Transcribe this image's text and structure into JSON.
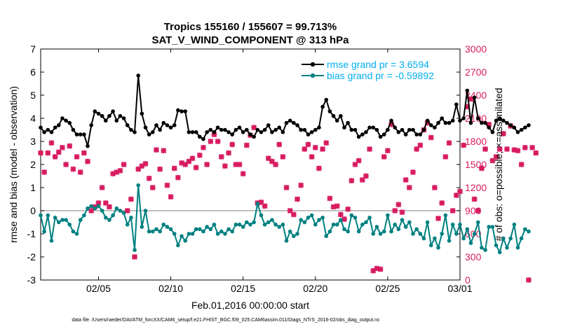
{
  "chart_data": {
    "type": "line",
    "title": "Tropics 155160 / 155607 = 99.713%",
    "subtitle": "SAT_V_WIND_COMPONENT @ 313 hPa",
    "xlabel": "Feb.01,2016 00:00:00 start",
    "ylabel": "rmse and bias (model - observation)",
    "ylabel_right": "# of obs: o=possible; ×=assimilated",
    "footnote": "data file: /Users/raeder/DAI/ATM_forcXX/CAM6_setup/f.e21.FHIST_BGC.f09_025.CAM6assim.011/Diags_NTrS_2016-02/obs_diag_output.nc",
    "xlim": [
      1.0,
      30.0
    ],
    "ylim": [
      -3,
      7
    ],
    "ylim_right": [
      0,
      3000
    ],
    "x_ticks": [
      5,
      10,
      15,
      20,
      25,
      30
    ],
    "x_tick_labels": [
      "02/05",
      "02/10",
      "02/15",
      "02/20",
      "02/25",
      "03/01"
    ],
    "y_ticks": [
      -3,
      -2,
      -1,
      0,
      1,
      2,
      3,
      4,
      5,
      6,
      7
    ],
    "y_tick_labels": [
      "-3",
      "-2",
      "-1",
      "0",
      "1",
      "2",
      "3",
      "4",
      "5",
      "6",
      "7"
    ],
    "y_ticks_right": [
      0,
      300,
      600,
      900,
      1200,
      1500,
      1800,
      2100,
      2400,
      2700,
      3000
    ],
    "y_tick_labels_right": [
      "0",
      "300",
      "600",
      "900",
      "1200",
      "1500",
      "1800",
      "2100",
      "2400",
      "2700",
      "3000"
    ],
    "x_step": 0.25,
    "x_start": 1.0,
    "zero_line": 0,
    "legend": {
      "position": "top-right",
      "entries": [
        "rmse grand pr = 3.6594",
        "bias grand pr = -0.59892"
      ]
    },
    "colors": {
      "rmse": "#000000",
      "bias": "#008080",
      "obs": "#d81b60",
      "legend_text": "#00aeef",
      "zero_line": "#aaaaaa",
      "right_axis": "#d81b60"
    },
    "series": [
      {
        "name": "rmse grand pr = 3.6594",
        "values": [
          3.6,
          3.4,
          3.5,
          3.4,
          3.6,
          3.7,
          4.0,
          3.9,
          3.8,
          3.5,
          3.3,
          3.3,
          3.3,
          2.8,
          3.7,
          4.3,
          4.2,
          4.1,
          3.9,
          4.1,
          4.3,
          3.9,
          4.1,
          4.0,
          3.7,
          3.5,
          3.4,
          5.85,
          4.2,
          3.6,
          3.3,
          3.4,
          3.7,
          3.5,
          3.8,
          3.7,
          3.6,
          3.7,
          4.35,
          4.3,
          4.3,
          3.4,
          3.4,
          3.4,
          3.2,
          3.1,
          3.4,
          3.5,
          3.4,
          3.6,
          3.5,
          3.5,
          3.4,
          3.3,
          3.5,
          3.6,
          3.4,
          3.5,
          3.3,
          3.2,
          3.5,
          3.4,
          3.5,
          3.7,
          3.4,
          3.5,
          3.6,
          3.4,
          3.8,
          3.9,
          3.8,
          3.7,
          3.5,
          3.5,
          3.3,
          3.4,
          3.5,
          3.6,
          4.5,
          4.8,
          4.3,
          4.1,
          3.9,
          4.1,
          3.6,
          3.8,
          3.5,
          3.5,
          3.2,
          3.3,
          3.4,
          3.6,
          3.6,
          3.5,
          3.2,
          3.3,
          3.5,
          3.9,
          3.6,
          3.4,
          3.5,
          3.3,
          3.5,
          3.5,
          3.3,
          3.3,
          3.5,
          3.9,
          3.7,
          3.6,
          3.8,
          4.0,
          3.8,
          3.8,
          3.9,
          4.6,
          3.9,
          4.0,
          5.2,
          3.8,
          4.9,
          4.0,
          3.8,
          3.8,
          3.6,
          3.4,
          3.9,
          4.0,
          3.9,
          3.8,
          3.7,
          3.6,
          3.4,
          3.5,
          3.6,
          3.7
        ]
      },
      {
        "name": "bias grand pr = -0.59892",
        "values": [
          -0.2,
          -0.9,
          -0.2,
          -1.3,
          -0.3,
          -0.5,
          -0.4,
          -0.4,
          -0.6,
          -0.9,
          -1.0,
          -0.4,
          -0.2,
          0.1,
          0.2,
          0.1,
          0.2,
          0.0,
          -0.3,
          -0.4,
          -0.2,
          0.1,
          0.0,
          -0.1,
          -0.6,
          -0.3,
          -1.7,
          1.1,
          -0.7,
          0.0,
          -0.9,
          -0.9,
          -0.8,
          -0.9,
          -0.6,
          -0.7,
          -0.8,
          -1.0,
          -1.5,
          -1.1,
          -1.3,
          -1.0,
          -1.0,
          -0.8,
          -0.8,
          -0.9,
          -0.7,
          -0.8,
          -0.6,
          -1.0,
          -0.9,
          -1.0,
          -0.8,
          -0.9,
          -0.6,
          -0.6,
          -0.7,
          -0.5,
          -0.6,
          -0.5,
          0.3,
          -0.2,
          -0.6,
          -0.5,
          -0.4,
          -0.6,
          -0.7,
          -0.6,
          -1.3,
          -0.9,
          -1.1,
          -1.0,
          -0.4,
          -0.5,
          -0.3,
          -0.2,
          -0.6,
          -0.4,
          -0.3,
          -1.1,
          -0.9,
          -0.6,
          -0.6,
          -0.4,
          -0.8,
          -0.9,
          -0.2,
          -0.3,
          -0.9,
          -0.6,
          -0.5,
          -0.3,
          -1.0,
          -0.7,
          -1.0,
          -0.9,
          -0.2,
          -0.9,
          -0.6,
          -0.8,
          -0.4,
          -0.7,
          -0.5,
          -1.0,
          -0.8,
          -1.0,
          -1.2,
          -0.5,
          -1.5,
          -1.2,
          -1.6,
          -1.0,
          -0.2,
          -1.3,
          -0.6,
          -1.0,
          -0.6,
          -1.2,
          -0.8,
          -1.4,
          -1.0,
          -0.5,
          -1.6,
          -1.7,
          -0.7,
          -0.7,
          -1.5,
          -1.8,
          -1.2,
          -1.6,
          -1.2,
          -0.6,
          -1.6,
          -1.2,
          -0.8,
          -0.9
        ]
      }
    ],
    "obs_series": {
      "name": "# of obs assimilated",
      "values": [
        1650,
        1400,
        1650,
        1780,
        1600,
        1660,
        1720,
        1500,
        1740,
        1440,
        1600,
        1400,
        1650,
        1540,
        900,
        950,
        1000,
        1200,
        1000,
        950,
        1380,
        1400,
        1420,
        1500,
        900,
        1050,
        300,
        1440,
        1480,
        1510,
        1320,
        1200,
        1690,
        1440,
        1680,
        1230,
        1080,
        1450,
        1330,
        1520,
        1500,
        1540,
        1580,
        1460,
        1620,
        1720,
        1500,
        1800,
        1890,
        1800,
        1600,
        1480,
        1650,
        1760,
        1500,
        1500,
        1380,
        1750,
        1880,
        1980,
        1000,
        1010,
        960,
        1580,
        1540,
        1500,
        1760,
        1600,
        1200,
        900,
        850,
        1050,
        1230,
        1700,
        1760,
        1600,
        1720,
        1450,
        1700,
        1780,
        1060,
        950,
        960,
        850,
        790,
        920,
        1290,
        1500,
        1550,
        1300,
        1350,
        1700,
        120,
        150,
        140,
        1600,
        1680,
        2020,
        900,
        980,
        880,
        1300,
        1200,
        1400,
        1700,
        1750,
        1950,
        2040,
        1850,
        1200,
        800,
        1000,
        1600,
        1780,
        900,
        1100,
        1150,
        1750,
        2250,
        2350,
        1050,
        900,
        1450,
        1700,
        2020,
        1550,
        1600,
        1700,
        1900,
        1700,
        2000,
        1690,
        1680,
        1500,
        1720,
        0,
        1720,
        1650
      ]
    }
  }
}
